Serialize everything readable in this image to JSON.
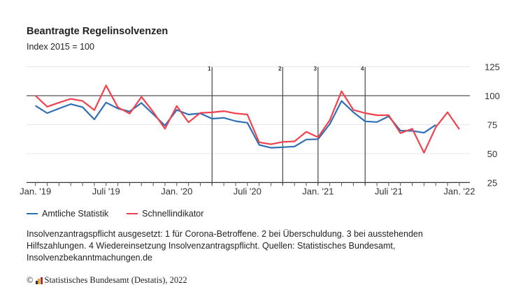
{
  "chart_data": {
    "type": "line",
    "title": "Beantragte Regelinsolvenzen",
    "subtitle": "Index 2015 = 100",
    "x": [
      "2019-01",
      "2019-02",
      "2019-03",
      "2019-04",
      "2019-05",
      "2019-06",
      "2019-07",
      "2019-08",
      "2019-09",
      "2019-10",
      "2019-11",
      "2019-12",
      "2020-01",
      "2020-02",
      "2020-03",
      "2020-04",
      "2020-05",
      "2020-06",
      "2020-07",
      "2020-08",
      "2020-09",
      "2020-10",
      "2020-11",
      "2020-12",
      "2021-01",
      "2021-02",
      "2021-03",
      "2021-04",
      "2021-05",
      "2021-06",
      "2021-07",
      "2021-08",
      "2021-09",
      "2021-10",
      "2021-11",
      "2021-12",
      "2022-01"
    ],
    "x_ticks": [
      {
        "label": "Jan. '19",
        "index": 0
      },
      {
        "label": "Juli '19",
        "index": 6
      },
      {
        "label": "Jan. '20",
        "index": 12
      },
      {
        "label": "Juli '20",
        "index": 18
      },
      {
        "label": "Jan. '21",
        "index": 24
      },
      {
        "label": "Juli '21",
        "index": 30
      },
      {
        "label": "Jan. '22",
        "index": 36
      }
    ],
    "y_ticks": [
      "25",
      "50",
      "75",
      "100",
      "125"
    ],
    "ylim": [
      25,
      125
    ],
    "y_axis_side": "right",
    "reference_line": 100,
    "grid": true,
    "legend_position": "bottom-left",
    "series": [
      {
        "name": "Amtliche Statistik",
        "color": "#2e6fb5",
        "values": [
          91.3,
          84.9,
          88.9,
          92.7,
          90.1,
          79.5,
          94.1,
          88.9,
          86.3,
          93.7,
          84,
          74.2,
          87.7,
          83.7,
          84.7,
          80.1,
          80.9,
          78,
          76.6,
          57.5,
          55,
          55.5,
          56.1,
          62.1,
          62.4,
          75.6,
          95.4,
          85.7,
          77.8,
          77.2,
          82.2,
          69.8,
          69.6,
          68,
          74.8,
          null,
          null
        ]
      },
      {
        "name": "Schnellindikator",
        "color": "#f0424e",
        "values": [
          100,
          90.5,
          94,
          97.2,
          95.4,
          87.5,
          108.8,
          89.9,
          84.5,
          99,
          86,
          71.4,
          91.1,
          77,
          85.1,
          85.6,
          86.7,
          84.7,
          83.7,
          59.7,
          58,
          60.1,
          60.5,
          68.8,
          64.1,
          78.9,
          103.8,
          87.7,
          84.9,
          83.1,
          83.1,
          67.6,
          71.4,
          50.7,
          72.8,
          85.7,
          71
        ]
      }
    ],
    "markers": [
      {
        "label": "1",
        "index": 15
      },
      {
        "label": "2",
        "index": 21
      },
      {
        "label": "3",
        "index": 24
      },
      {
        "label": "4",
        "index": 28
      }
    ]
  },
  "note": "Insolvenzantragspflicht ausgesetzt: 1 für Corona-Betroffene. 2 bei Überschuldung. 3 bei ausstehenden Hilfszahlungen. 4 Wiedereinsetzung Insolvenzantragspflicht. Quellen: Statistisches Bundesamt, Insolvenzbekanntmachungen.de",
  "footer": {
    "copyright": "©",
    "text": "Statistisches Bundesamt (Destatis), 2022"
  }
}
